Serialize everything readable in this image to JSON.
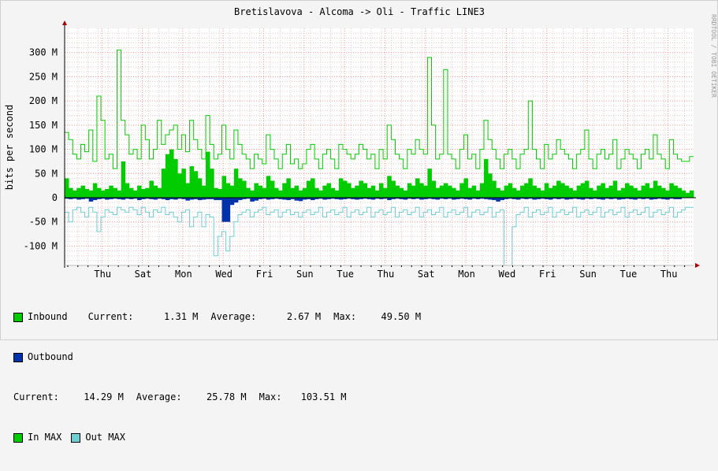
{
  "chart_data": {
    "type": "area",
    "title": "Bretislavova - Alcoma -> Oli - Traffic LINE3",
    "ylabel": "bits per second",
    "side_label": "RRDTOOL / TOBI OETIKER",
    "ylim": [
      -140,
      350
    ],
    "y_ticks": [
      {
        "v": 300,
        "label": "300 M"
      },
      {
        "v": 250,
        "label": "250 M"
      },
      {
        "v": 200,
        "label": "200 M"
      },
      {
        "v": 150,
        "label": "150 M"
      },
      {
        "v": 100,
        "label": "100 M"
      },
      {
        "v": 50,
        "label": "50 M"
      },
      {
        "v": 0,
        "label": "0"
      },
      {
        "v": -50,
        "label": "-50 M"
      },
      {
        "v": -100,
        "label": "-100 M"
      }
    ],
    "x_labels": [
      "Thu",
      "Sat",
      "Mon",
      "Wed",
      "Fri",
      "Sun",
      "Tue",
      "Thu",
      "Sat",
      "Mon",
      "Wed",
      "Fri",
      "Sun",
      "Tue",
      "Thu"
    ],
    "series": [
      {
        "name": "Inbound",
        "values": [
          40,
          20,
          15,
          20,
          25,
          18,
          15,
          30,
          20,
          15,
          18,
          25,
          20,
          15,
          75,
          30,
          20,
          15,
          25,
          18,
          20,
          35,
          25,
          20,
          60,
          90,
          100,
          80,
          50,
          60,
          30,
          65,
          55,
          40,
          25,
          95,
          60,
          20,
          18,
          45,
          30,
          25,
          60,
          40,
          35,
          20,
          15,
          30,
          25,
          20,
          45,
          35,
          20,
          15,
          30,
          40,
          20,
          25,
          15,
          20,
          35,
          40,
          20,
          15,
          25,
          30,
          20,
          15,
          40,
          35,
          30,
          20,
          25,
          35,
          30,
          20,
          25,
          15,
          30,
          20,
          45,
          35,
          25,
          20,
          15,
          30,
          25,
          40,
          30,
          25,
          60,
          35,
          20,
          25,
          30,
          25,
          20,
          15,
          30,
          40,
          20,
          25,
          15,
          30,
          80,
          50,
          35,
          20,
          15,
          25,
          30,
          20,
          15,
          25,
          30,
          40,
          25,
          20,
          15,
          30,
          20,
          25,
          35,
          30,
          25,
          20,
          15,
          25,
          30,
          35,
          20,
          15,
          25,
          30,
          20,
          25,
          35,
          15,
          20,
          30,
          25,
          20,
          15,
          25,
          30,
          20,
          35,
          25,
          20,
          15,
          30,
          25,
          20,
          15,
          10,
          15
        ]
      },
      {
        "name": "Outbound",
        "values": [
          -2,
          -3,
          -2,
          -4,
          -3,
          -2,
          -8,
          -5,
          -3,
          -2,
          -4,
          -3,
          -2,
          -3,
          -4,
          -2,
          -3,
          -2,
          -5,
          -3,
          -2,
          -3,
          -4,
          -2,
          -3,
          -5,
          -3,
          -4,
          -2,
          -3,
          -6,
          -4,
          -3,
          -5,
          -4,
          -3,
          -3,
          -5,
          -5,
          -50,
          -50,
          -15,
          -10,
          -5,
          -3,
          -2,
          -8,
          -6,
          -3,
          -2,
          -4,
          -3,
          -2,
          -3,
          -4,
          -5,
          -3,
          -6,
          -7,
          -4,
          -3,
          -5,
          -3,
          -2,
          -4,
          -3,
          -2,
          -3,
          -4,
          -3,
          -2,
          -3,
          -4,
          -3,
          -2,
          -3,
          -4,
          -2,
          -3,
          -2,
          -5,
          -3,
          -2,
          -3,
          -4,
          -2,
          -3,
          -2,
          -4,
          -3,
          -2,
          -3,
          -4,
          -2,
          -3,
          -2,
          -4,
          -3,
          -2,
          -3,
          -4,
          -2,
          -3,
          -2,
          -3,
          -4,
          -5,
          -8,
          -5,
          -3,
          -2,
          -3,
          -4,
          -2,
          -3,
          -2,
          -4,
          -3,
          -2,
          -3,
          -4,
          -2,
          -3,
          -2,
          -4,
          -3,
          -2,
          -3,
          -4,
          -2,
          -3,
          -2,
          -3,
          -4,
          -2,
          -3,
          -2,
          -4,
          -3,
          -2,
          -3,
          -4,
          -2,
          -3,
          -2,
          -4,
          -3,
          -2,
          -3,
          -4,
          -2,
          -3,
          -3
        ]
      },
      {
        "name": "In MAX",
        "values": [
          135,
          120,
          90,
          80,
          110,
          95,
          140,
          75,
          210,
          160,
          80,
          90,
          60,
          305,
          160,
          130,
          90,
          100,
          80,
          150,
          120,
          80,
          100,
          160,
          110,
          130,
          140,
          150,
          100,
          130,
          95,
          160,
          120,
          100,
          80,
          170,
          110,
          80,
          90,
          150,
          100,
          80,
          140,
          110,
          90,
          80,
          60,
          90,
          80,
          70,
          130,
          100,
          80,
          60,
          90,
          110,
          70,
          80,
          60,
          70,
          100,
          110,
          80,
          60,
          90,
          100,
          80,
          60,
          110,
          100,
          90,
          80,
          90,
          110,
          100,
          80,
          90,
          60,
          100,
          80,
          150,
          120,
          90,
          80,
          60,
          100,
          90,
          120,
          100,
          90,
          290,
          150,
          80,
          90,
          265,
          90,
          80,
          60,
          100,
          130,
          80,
          90,
          60,
          100,
          160,
          120,
          100,
          80,
          60,
          90,
          100,
          80,
          60,
          90,
          100,
          200,
          100,
          80,
          60,
          110,
          80,
          90,
          120,
          100,
          90,
          80,
          60,
          90,
          100,
          140,
          80,
          60,
          90,
          100,
          80,
          90,
          120,
          60,
          80,
          100,
          90,
          80,
          60,
          90,
          100,
          80,
          130,
          90,
          80,
          60,
          120,
          90,
          80,
          75,
          75,
          85
        ]
      },
      {
        "name": "Out MAX",
        "values": [
          -30,
          -50,
          -25,
          -20,
          -30,
          -40,
          -20,
          -30,
          -70,
          -40,
          -25,
          -30,
          -35,
          -20,
          -25,
          -30,
          -20,
          -25,
          -35,
          -20,
          -30,
          -40,
          -25,
          -30,
          -20,
          -35,
          -30,
          -40,
          -50,
          -30,
          -25,
          -60,
          -40,
          -30,
          -60,
          -35,
          -40,
          -120,
          -80,
          -70,
          -110,
          -80,
          -50,
          -35,
          -30,
          -25,
          -40,
          -30,
          -25,
          -20,
          -35,
          -30,
          -25,
          -40,
          -30,
          -25,
          -35,
          -30,
          -40,
          -30,
          -25,
          -35,
          -30,
          -20,
          -40,
          -30,
          -25,
          -35,
          -30,
          -20,
          -40,
          -30,
          -25,
          -35,
          -30,
          -20,
          -40,
          -30,
          -25,
          -35,
          -30,
          -20,
          -40,
          -30,
          -25,
          -35,
          -30,
          -20,
          -40,
          -30,
          -25,
          -35,
          -30,
          -20,
          -40,
          -30,
          -25,
          -35,
          -30,
          -20,
          -40,
          -30,
          -25,
          -35,
          -30,
          -20,
          -40,
          -30,
          -25,
          -140,
          -140,
          -60,
          -35,
          -30,
          -20,
          -40,
          -30,
          -25,
          -35,
          -30,
          -20,
          -40,
          -30,
          -25,
          -35,
          -30,
          -20,
          -40,
          -30,
          -25,
          -35,
          -30,
          -20,
          -40,
          -30,
          -25,
          -35,
          -30,
          -20,
          -40,
          -30,
          -25,
          -35,
          -30,
          -20,
          -40,
          -30,
          -25,
          -35,
          -30,
          -20,
          -40,
          -30,
          -25,
          -20,
          -20
        ]
      }
    ],
    "colors": {
      "inbound": "#00cc00",
      "outbound": "#0033aa",
      "in_max": "#00cc00",
      "out_max": "#6ccfd6",
      "grid_major": "#ff9090",
      "grid_minor": "#e8c8c8",
      "axis": "#000000",
      "arrow": "#aa0000",
      "background": "#ffffff"
    },
    "grid": true,
    "legend_placement": "bottom-left"
  },
  "legend": {
    "inbound": {
      "label": "Inbound",
      "current_label": "Current:",
      "current": "1.31 M",
      "average_label": "Average:",
      "average": "2.67 M",
      "max_label": "Max:",
      "max": "49.50 M"
    },
    "outbound": {
      "label": "Outbound",
      "current_label": "Current:",
      "current": "14.29 M",
      "average_label": "Average:",
      "average": "25.78 M",
      "max_label": "Max:",
      "max": "103.51 M"
    },
    "in_max_label": "In MAX",
    "out_max_label": "Out MAX"
  }
}
